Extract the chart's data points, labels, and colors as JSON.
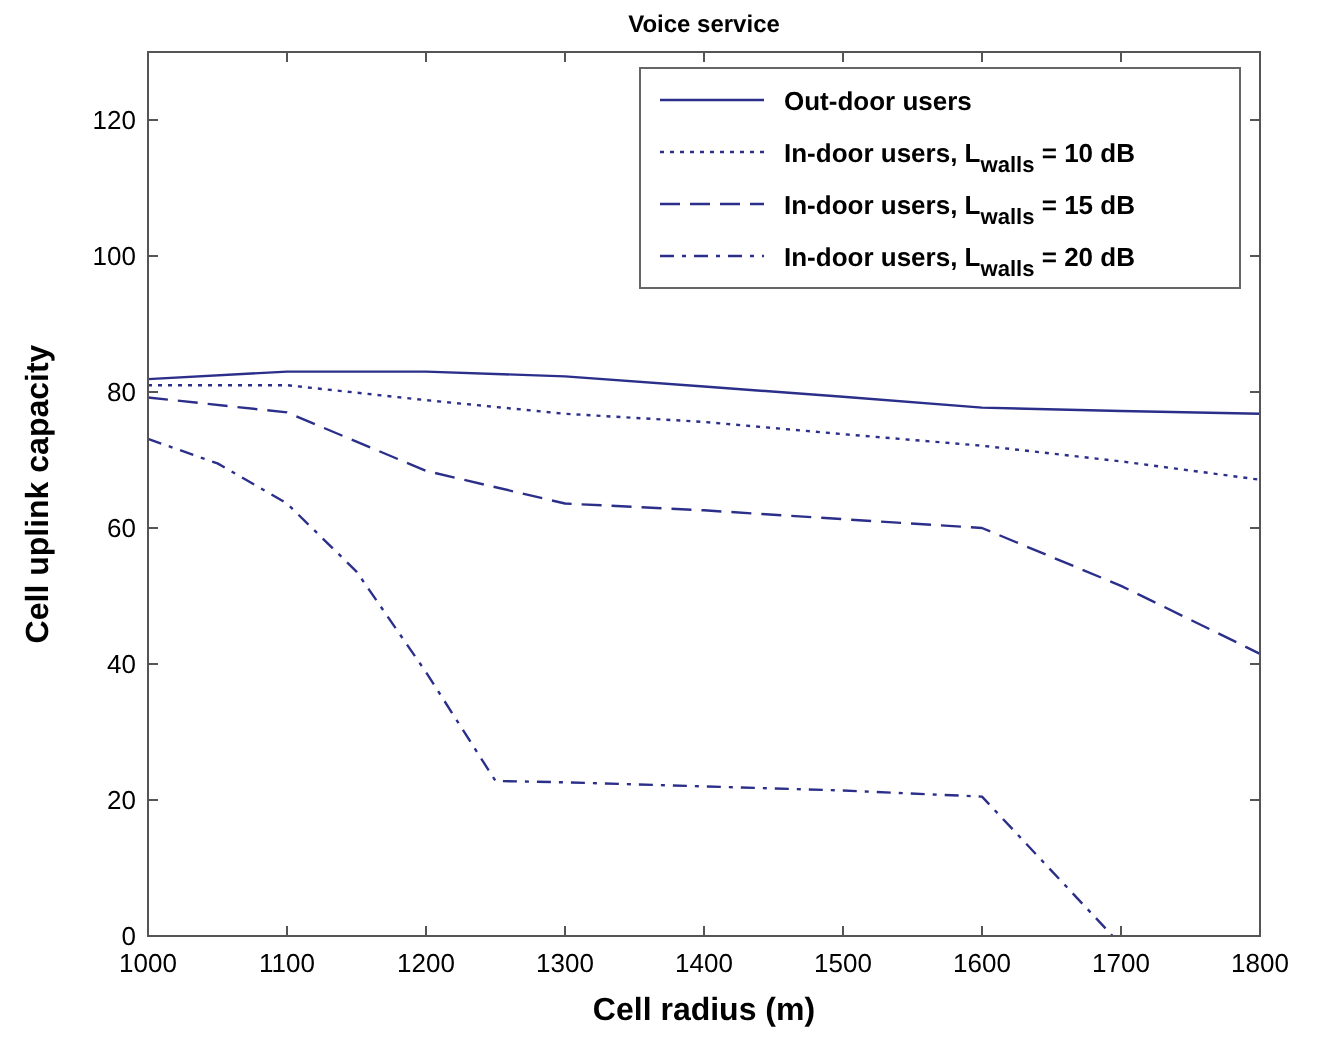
{
  "chart_data": {
    "type": "line",
    "title": "Voice service",
    "xlabel": "Cell radius  (m)",
    "ylabel": "Cell uplink capacity",
    "xlim": [
      1000,
      1800
    ],
    "ylim": [
      0,
      130
    ],
    "xticks": [
      1000,
      1100,
      1200,
      1300,
      1400,
      1500,
      1600,
      1700,
      1800
    ],
    "yticks": [
      0,
      20,
      40,
      60,
      80,
      100,
      120
    ],
    "grid": false,
    "legend": "top right",
    "marker": "none",
    "series": [
      {
        "name": "Out-door users",
        "color": "#2b2f8a",
        "line_style": "solid",
        "x": [
          1000,
          1100,
          1200,
          1300,
          1400,
          1500,
          1600,
          1700,
          1800
        ],
        "values": [
          81.9,
          83,
          83,
          82.3,
          80.8,
          79.3,
          77.7,
          77.2,
          76.8
        ]
      },
      {
        "name": "In-door users, L$_{walls}$ = 10 dB",
        "color": "#2b2f8a",
        "line_style": "dotted",
        "x": [
          1000,
          1100,
          1200,
          1300,
          1400,
          1500,
          1600,
          1700,
          1800
        ],
        "values": [
          81,
          81,
          78.8,
          76.8,
          75.6,
          73.8,
          72.1,
          69.8,
          67.1
        ]
      },
      {
        "name": "In-door users, L$_{walls}$ = 15 dB",
        "color": "#2b2f8a",
        "line_style": "dashed",
        "x": [
          1000,
          1100,
          1200,
          1300,
          1400,
          1500,
          1600,
          1700,
          1800
        ],
        "values": [
          79.2,
          77,
          68.4,
          63.6,
          62.6,
          61.3,
          60,
          51.5,
          41.5
        ]
      },
      {
        "name": "In-door users, L$_{walls}$ = 20 dB",
        "color": "#2b2f8a",
        "line_style": "dashdot",
        "x": [
          1000,
          1050,
          1100,
          1150,
          1200,
          1250,
          1300,
          1400,
          1500,
          1600,
          1694
        ],
        "values": [
          73.1,
          69.5,
          63.6,
          53.6,
          38.8,
          22.8,
          22.6,
          22,
          21.4,
          20.5,
          0
        ]
      }
    ]
  }
}
